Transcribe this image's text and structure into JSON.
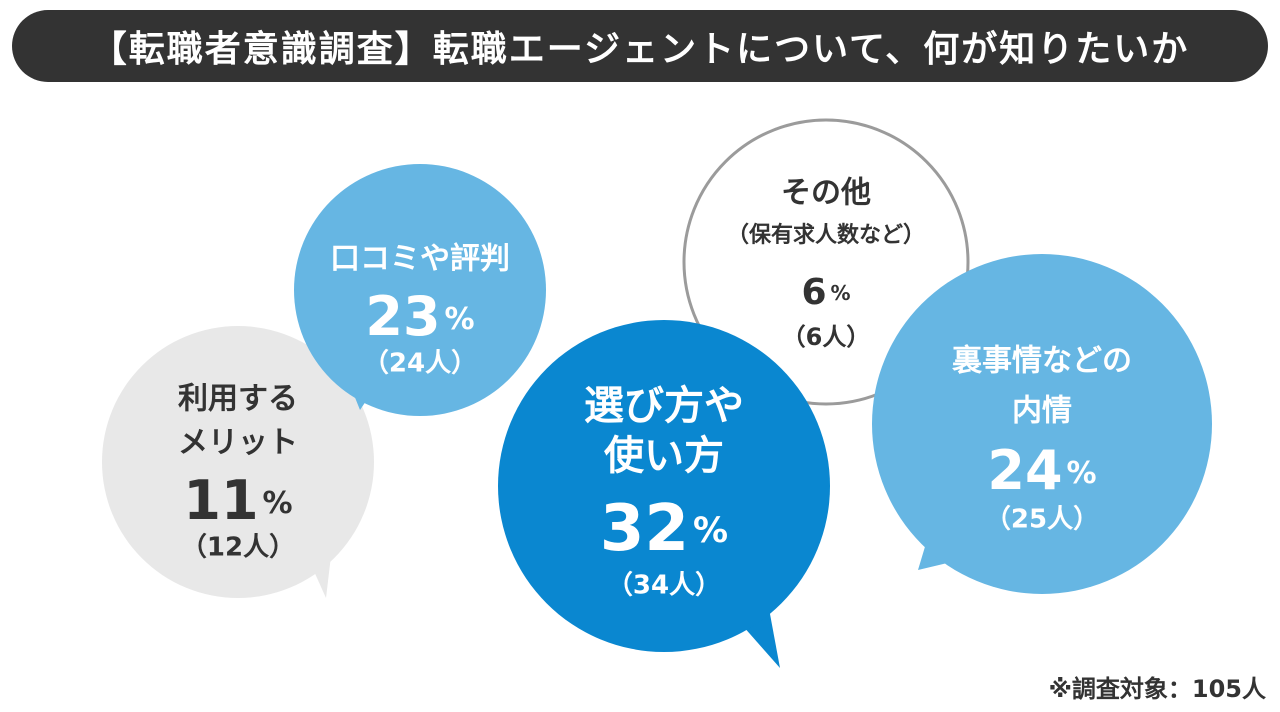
{
  "title": "【転職者意識調査】転職エージェントについて、何が知りたいか",
  "footnote": "※調査対象：105人",
  "colors": {
    "title_bg": "#333333",
    "dark_blue": "#0a87d0",
    "light_blue": "#66b6e3",
    "gray": "#e8e8e8",
    "outline": "#9b9b9b",
    "text_dark": "#333333",
    "text_light": "#ffffff"
  },
  "chart_data": {
    "type": "bubble",
    "total_label": "※調査対象：105人",
    "items": [
      {
        "label_lines": [
          "利用する",
          "メリット"
        ],
        "percent": 11,
        "count_label": "（12人）",
        "style": "gray"
      },
      {
        "label_lines": [
          "口コミや評判"
        ],
        "percent": 23,
        "count_label": "（24人）",
        "style": "light_blue"
      },
      {
        "label_lines": [
          "選び方や",
          "使い方"
        ],
        "percent": 32,
        "count_label": "（34人）",
        "style": "dark_blue"
      },
      {
        "label_lines": [
          "その他",
          "（保有求人数など）"
        ],
        "percent": 6,
        "count_label": "（6人）",
        "style": "outline"
      },
      {
        "label_lines": [
          "裏事情などの",
          "内情"
        ],
        "percent": 24,
        "count_label": "（25人）",
        "style": "light_blue"
      }
    ]
  }
}
